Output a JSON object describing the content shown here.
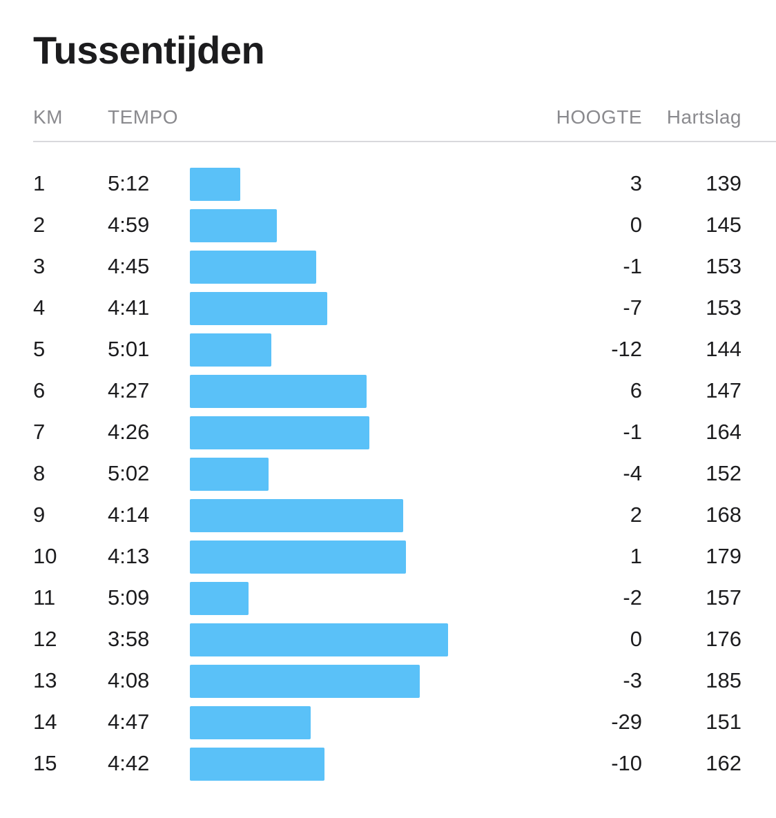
{
  "title": "Tussentijden",
  "headers": {
    "km": "KM",
    "tempo": "TEMPO",
    "hoogte": "HOOGTE",
    "hartslag": "Hartslag"
  },
  "bar_color": "#5ac1f8",
  "tempo_scale": {
    "min_seconds": 200,
    "max_seconds": 330
  },
  "splits": [
    {
      "km": "1",
      "tempo": "5:12",
      "tempo_seconds": 312,
      "hoogte": "3",
      "hartslag": "139"
    },
    {
      "km": "2",
      "tempo": "4:59",
      "tempo_seconds": 299,
      "hoogte": "0",
      "hartslag": "145"
    },
    {
      "km": "3",
      "tempo": "4:45",
      "tempo_seconds": 285,
      "hoogte": "-1",
      "hartslag": "153"
    },
    {
      "km": "4",
      "tempo": "4:41",
      "tempo_seconds": 281,
      "hoogte": "-7",
      "hartslag": "153"
    },
    {
      "km": "5",
      "tempo": "5:01",
      "tempo_seconds": 301,
      "hoogte": "-12",
      "hartslag": "144"
    },
    {
      "km": "6",
      "tempo": "4:27",
      "tempo_seconds": 267,
      "hoogte": "6",
      "hartslag": "147"
    },
    {
      "km": "7",
      "tempo": "4:26",
      "tempo_seconds": 266,
      "hoogte": "-1",
      "hartslag": "164"
    },
    {
      "km": "8",
      "tempo": "5:02",
      "tempo_seconds": 302,
      "hoogte": "-4",
      "hartslag": "152"
    },
    {
      "km": "9",
      "tempo": "4:14",
      "tempo_seconds": 254,
      "hoogte": "2",
      "hartslag": "168"
    },
    {
      "km": "10",
      "tempo": "4:13",
      "tempo_seconds": 253,
      "hoogte": "1",
      "hartslag": "179"
    },
    {
      "km": "11",
      "tempo": "5:09",
      "tempo_seconds": 309,
      "hoogte": "-2",
      "hartslag": "157"
    },
    {
      "km": "12",
      "tempo": "3:58",
      "tempo_seconds": 238,
      "hoogte": "0",
      "hartslag": "176"
    },
    {
      "km": "13",
      "tempo": "4:08",
      "tempo_seconds": 248,
      "hoogte": "-3",
      "hartslag": "185"
    },
    {
      "km": "14",
      "tempo": "4:47",
      "tempo_seconds": 287,
      "hoogte": "-29",
      "hartslag": "151"
    },
    {
      "km": "15",
      "tempo": "4:42",
      "tempo_seconds": 282,
      "hoogte": "-10",
      "hartslag": "162"
    }
  ]
}
